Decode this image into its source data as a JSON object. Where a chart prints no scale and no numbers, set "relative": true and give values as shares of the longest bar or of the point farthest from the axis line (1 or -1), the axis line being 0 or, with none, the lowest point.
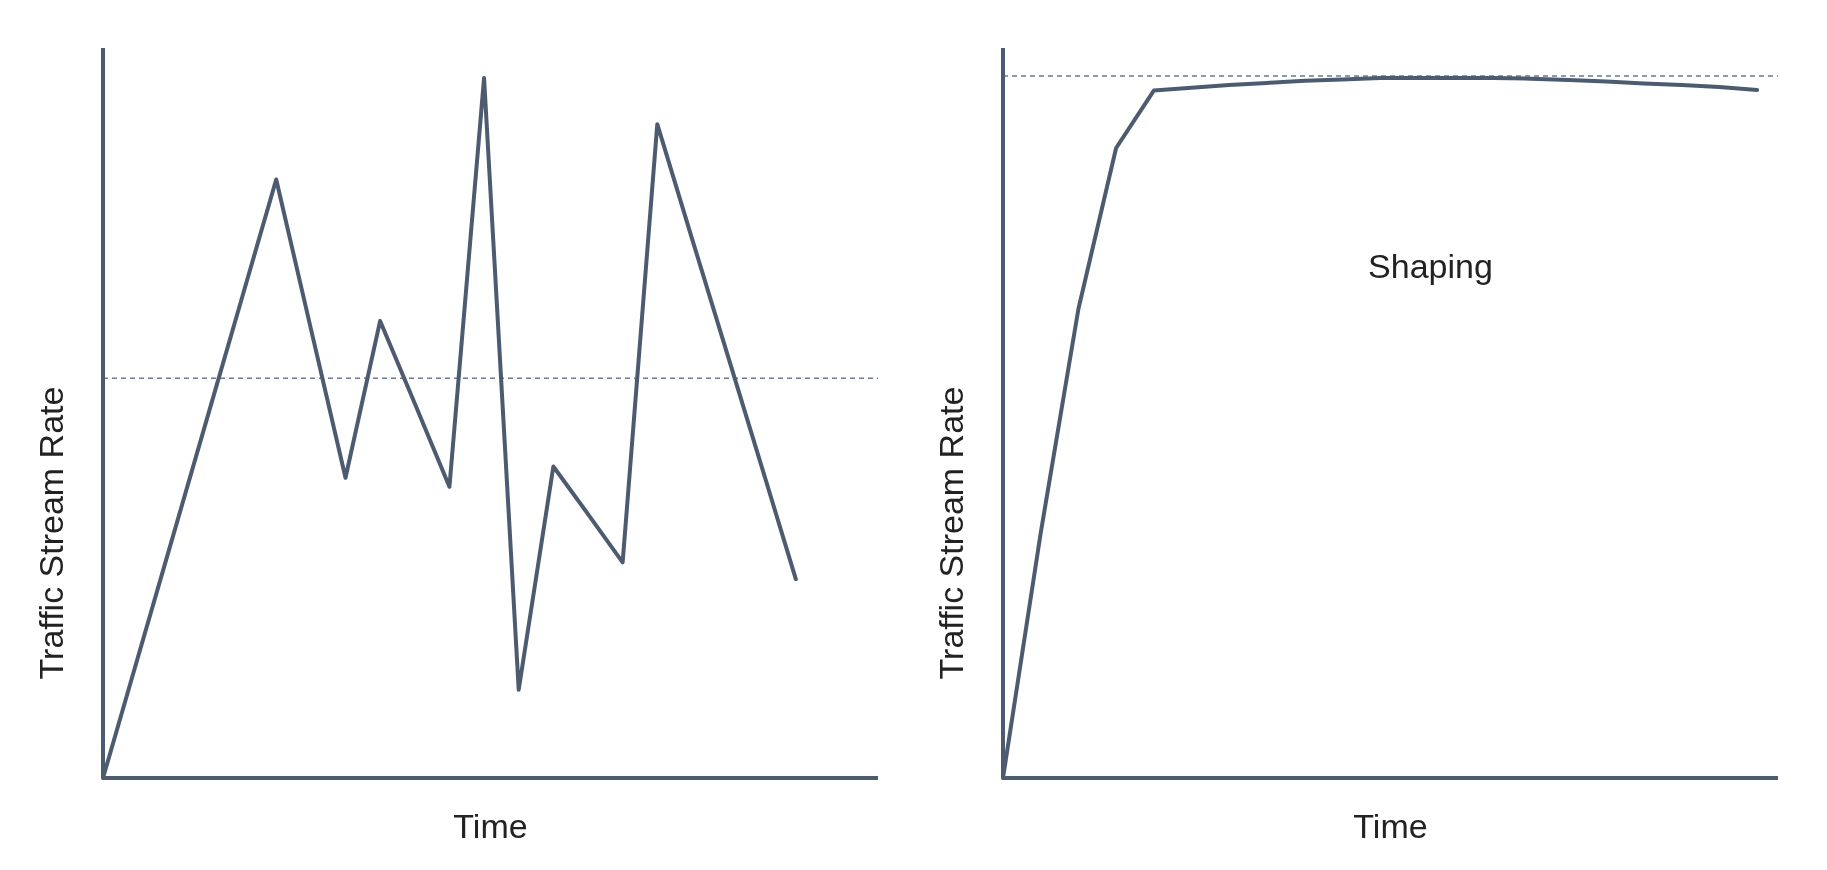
{
  "chart_data": [
    {
      "type": "line",
      "ylabel": "Traffic Stream Rate",
      "xlabel": "Time",
      "relative": true,
      "categories": [
        null,
        null,
        null,
        null,
        null,
        null,
        null,
        null,
        null,
        null,
        null,
        null,
        null,
        null,
        null,
        null,
        null,
        null,
        null,
        null,
        null
      ],
      "series": [
        {
          "color": "#4d5b70",
          "values": [
            0,
            0.171,
            0.342,
            0.513,
            0.684,
            0.855,
            0.642,
            0.429,
            0.653,
            0.535,
            0.416,
            1,
            0.126,
            0.445,
            0.377,
            0.308,
            0.934,
            0.771,
            0.609,
            0.447,
            0.284
          ]
        }
      ],
      "ref_lines": [
        {
          "axis": "y",
          "value": 0.571,
          "color": "#6a7a90",
          "line_style": "dashed"
        }
      ]
    },
    {
      "type": "line",
      "ylabel": "Traffic Stream Rate",
      "xlabel": "Time",
      "relative": true,
      "annotations": [
        "Shaping"
      ],
      "categories": [
        null,
        null,
        null,
        null,
        null,
        null,
        null,
        null,
        null,
        null,
        null,
        null,
        null,
        null,
        null,
        null,
        null,
        null,
        null,
        null,
        null
      ],
      "series": [
        {
          "color": "#4d5b70",
          "values": [
            0,
            0.35,
            0.67,
            0.9,
            0.982,
            0.986,
            0.99,
            0.993,
            0.996,
            0.998,
            1,
            1,
            1,
            1,
            0.999,
            0.997,
            0.995,
            0.992,
            0.99,
            0.987,
            0.983
          ]
        }
      ],
      "ref_lines": [
        {
          "axis": "y",
          "value": 1.003,
          "color": "#6a7a90",
          "line_style": "dashed"
        }
      ]
    }
  ]
}
